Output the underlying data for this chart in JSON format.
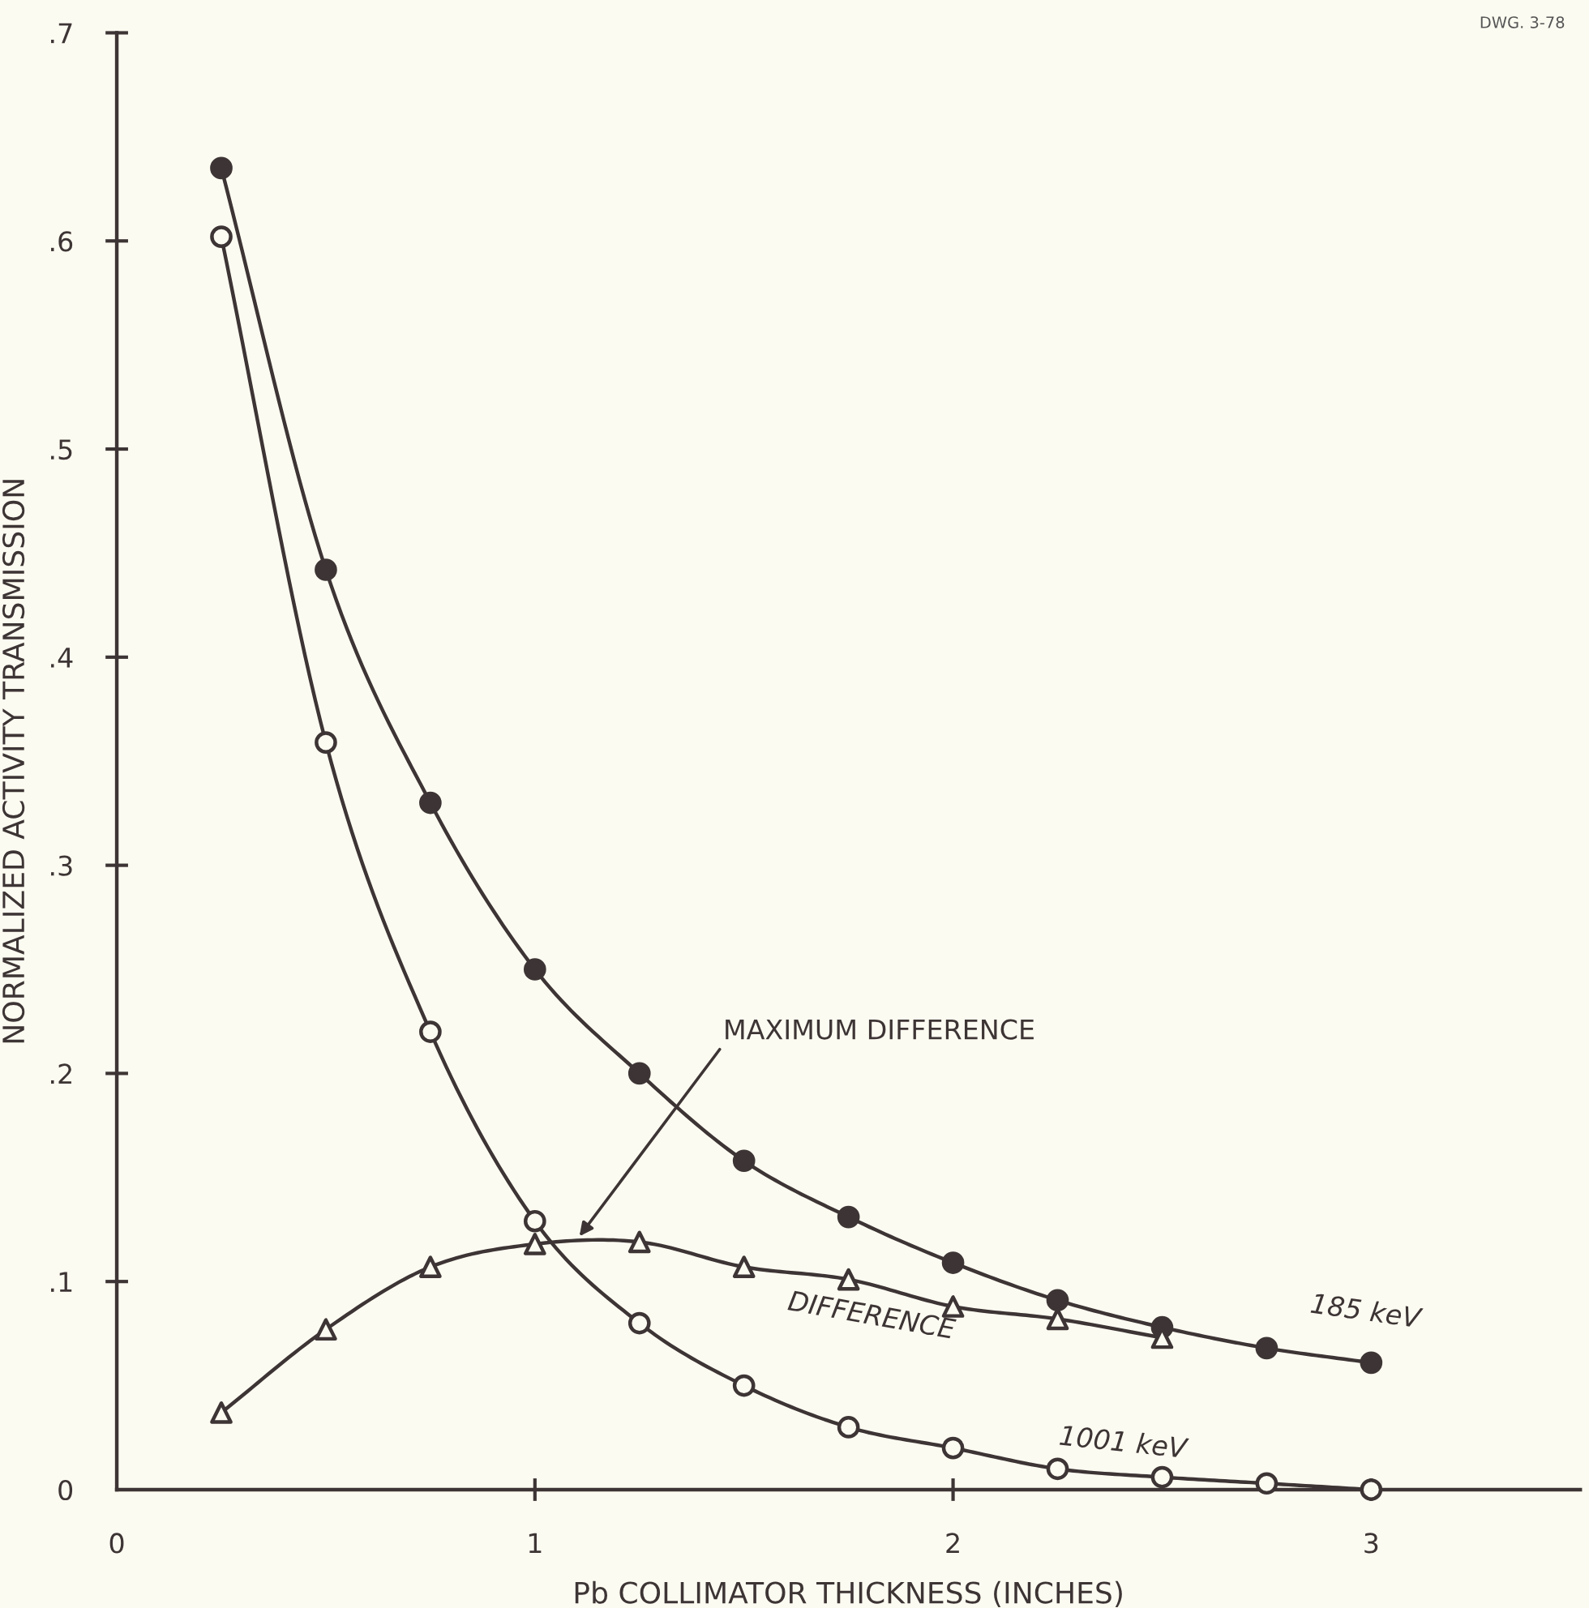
{
  "chart_data": {
    "type": "line",
    "xlabel": "Pb COLLIMATOR THICKNESS (INCHES)",
    "ylabel": "NORMALIZED ACTIVITY TRANSMISSION",
    "xlim": [
      0,
      3.5
    ],
    "xticks": [
      0,
      1,
      2,
      3
    ],
    "ylim": [
      0,
      0.7
    ],
    "yticks": [
      {
        "value": 0,
        "label": "0"
      },
      {
        "value": 0.1,
        "label": ".1"
      },
      {
        "value": 0.2,
        "label": ".2"
      },
      {
        "value": 0.3,
        "label": ".3"
      },
      {
        "value": 0.4,
        "label": ".4"
      },
      {
        "value": 0.5,
        "label": ".5"
      },
      {
        "value": 0.6,
        "label": ".6"
      },
      {
        "value": 0.7,
        "label": ".7"
      }
    ],
    "grid": false,
    "legend": false,
    "series": [
      {
        "name": "185 keV",
        "color": "#3d3535",
        "marker": "circle",
        "x": [
          0.25,
          0.5,
          0.75,
          1,
          1.25,
          1.5,
          1.75,
          2,
          2.25,
          2.5,
          2.75,
          3
        ],
        "values": [
          0.635,
          0.442,
          0.33,
          0.25,
          0.2,
          0.158,
          0.131,
          0.109,
          0.091,
          0.078,
          0.068,
          0.061
        ]
      },
      {
        "name": "1001 keV",
        "color": "#3d3535",
        "marker": "circle",
        "x": [
          0.25,
          0.5,
          0.75,
          1,
          1.25,
          1.5,
          1.75,
          2,
          2.25,
          2.5,
          2.75,
          3
        ],
        "values": [
          0.602,
          0.359,
          0.22,
          0.129,
          0.08,
          0.05,
          0.03,
          0.02,
          0.01,
          0.006,
          0.003,
          0.0
        ]
      },
      {
        "name": "DIFFERENCE",
        "color": "#3d3535",
        "marker": "triangle",
        "x": [
          0.25,
          0.5,
          0.75,
          1,
          1.25,
          1.5,
          1.75,
          2,
          2.25,
          2.5
        ],
        "values": [
          0.037,
          0.077,
          0.107,
          0.118,
          0.119,
          0.107,
          0.101,
          0.088,
          0.082,
          0.073
        ]
      }
    ],
    "annotations": [
      {
        "text": "MAXIMUM DIFFERENCE",
        "x": 1.1,
        "y": 0.12
      },
      "DWG. 3-78"
    ]
  }
}
